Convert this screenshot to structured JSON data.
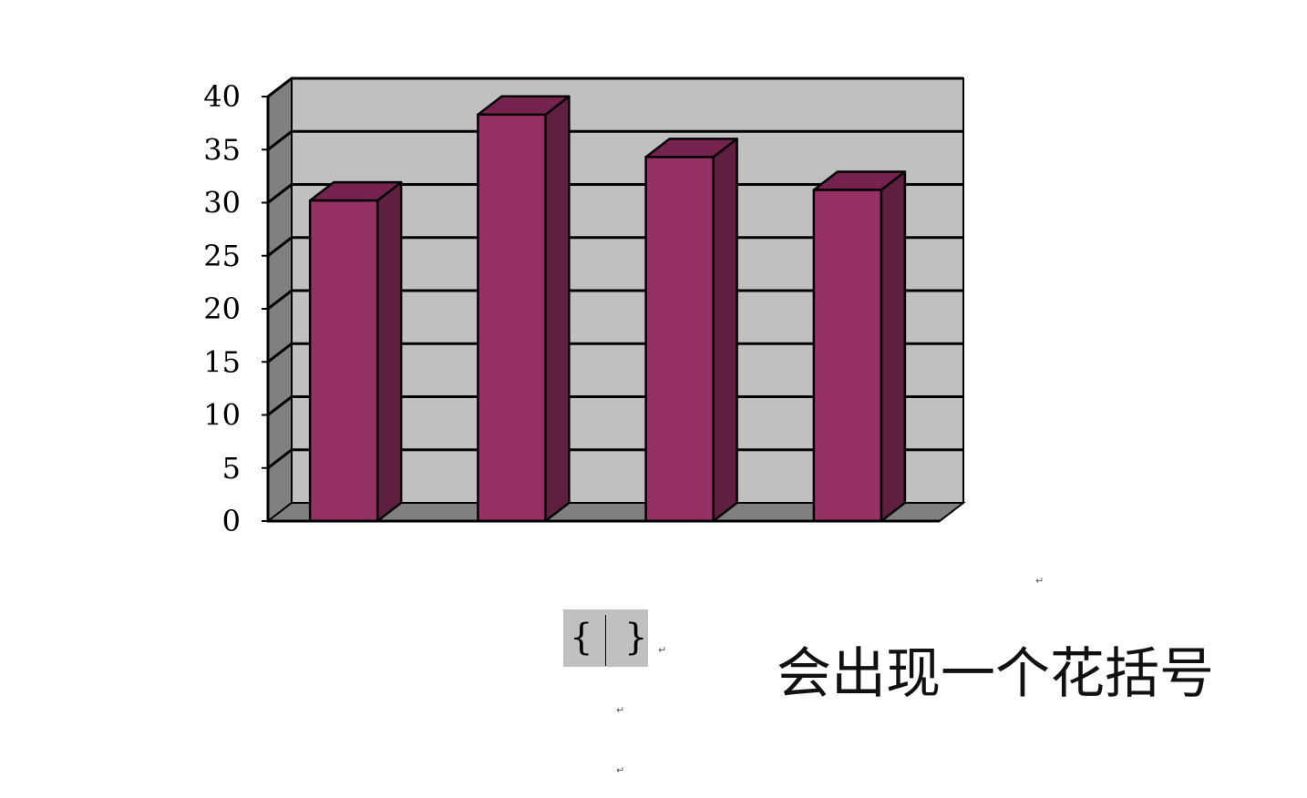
{
  "chart_data": {
    "type": "bar",
    "categories": [
      "",
      "",
      "",
      ""
    ],
    "values": [
      30.2,
      38.3,
      34.3,
      31.2
    ],
    "title": "",
    "xlabel": "",
    "ylabel": "",
    "ylim": [
      0,
      40
    ],
    "yticks": [
      "0",
      "5",
      "10",
      "15",
      "20",
      "25",
      "30",
      "35",
      "40"
    ],
    "grid": true,
    "legend": "none",
    "style": "3d-column",
    "colors": {
      "bar_front": "#963163",
      "bar_top": "#76224f",
      "bar_side": "#5e1f41",
      "back_wall": "#c0c0c0",
      "side_wall": "#808080",
      "floor": "#808080"
    }
  },
  "document": {
    "field_open_brace": "{",
    "field_close_brace": "}",
    "paragraph_mark": "↵",
    "annotation": "会出现一个花括号"
  }
}
